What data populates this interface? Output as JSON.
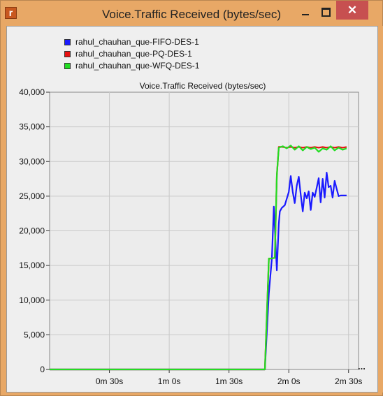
{
  "window": {
    "title": "Voice.Traffic Received (bytes/sec)",
    "app_icon_glyph": "r",
    "close_glyph": "✕",
    "colors": {
      "frame": "#e8a866",
      "close": "#c75050",
      "plot_bg": "#ececec"
    }
  },
  "chart_data": {
    "type": "line",
    "title": "Voice.Traffic Received (bytes/sec)",
    "xlabel": "",
    "ylabel": "",
    "xlim": [
      0,
      155
    ],
    "ylim": [
      0,
      40000
    ],
    "grid": true,
    "legend_position": "top-left",
    "yticks": [
      {
        "value": 0,
        "label": "0"
      },
      {
        "value": 5000,
        "label": "5,000"
      },
      {
        "value": 10000,
        "label": "10,000"
      },
      {
        "value": 15000,
        "label": "15,000"
      },
      {
        "value": 20000,
        "label": "20,000"
      },
      {
        "value": 25000,
        "label": "25,000"
      },
      {
        "value": 30000,
        "label": "30,000"
      },
      {
        "value": 35000,
        "label": "35,000"
      },
      {
        "value": 40000,
        "label": "40,000"
      }
    ],
    "xticks": [
      {
        "value": 30,
        "label": "0m 30s"
      },
      {
        "value": 60,
        "label": "1m 0s"
      },
      {
        "value": 90,
        "label": "1m 30s"
      },
      {
        "value": 120,
        "label": "2m 0s"
      },
      {
        "value": 150,
        "label": "2m 30s"
      }
    ],
    "more_marker": "...",
    "series": [
      {
        "name": "rahul_chauhan_que-FIFO-DES-1",
        "color": "#1a1aff",
        "x": [
          0,
          108,
          110,
          111.5,
          112.5,
          114,
          115,
          115.5,
          116.5,
          118,
          120,
          121,
          122,
          123,
          124,
          125,
          126,
          127,
          128,
          129,
          130,
          131,
          132,
          133,
          134,
          135,
          136,
          137,
          138,
          139,
          140,
          141,
          142,
          143,
          144,
          145,
          146,
          147,
          148,
          149
        ],
        "y": [
          0,
          0,
          11000,
          16000,
          23500,
          14300,
          21000,
          22800,
          23300,
          23700,
          25600,
          27900,
          25600,
          24000,
          26500,
          27800,
          25200,
          22800,
          25500,
          24700,
          25700,
          23000,
          25500,
          24900,
          26200,
          27600,
          24100,
          27500,
          24800,
          28400,
          26300,
          26500,
          24800,
          27200,
          26100,
          25000,
          25100,
          25100,
          25100,
          25100
        ]
      },
      {
        "name": "rahul_chauhan_que-PQ-DES-1",
        "color": "#e81010",
        "x": [
          0,
          108,
          110,
          111,
          113,
          114,
          115,
          117,
          119,
          121,
          123,
          125,
          127,
          129,
          131,
          133,
          135,
          137,
          139,
          141,
          143,
          145,
          147,
          149
        ],
        "y": [
          0,
          0,
          16000,
          16000,
          16100,
          28000,
          32100,
          32100,
          32000,
          32100,
          32000,
          32100,
          32000,
          32100,
          32000,
          32100,
          32000,
          32100,
          32000,
          32100,
          32000,
          32100,
          32000,
          32100
        ]
      },
      {
        "name": "rahul_chauhan_que-WFQ-DES-1",
        "color": "#22dd22",
        "x": [
          0,
          108,
          110,
          111,
          113,
          114,
          115,
          117,
          119,
          121,
          123,
          125,
          127,
          129,
          131,
          133,
          135,
          137,
          139,
          141,
          143,
          145,
          147,
          149
        ],
        "y": [
          0,
          0,
          16000,
          16000,
          16100,
          28000,
          32000,
          32200,
          31900,
          32300,
          31700,
          32200,
          31600,
          32100,
          31800,
          32000,
          31400,
          31900,
          31700,
          32200,
          31600,
          32000,
          31700,
          31900
        ]
      }
    ]
  }
}
